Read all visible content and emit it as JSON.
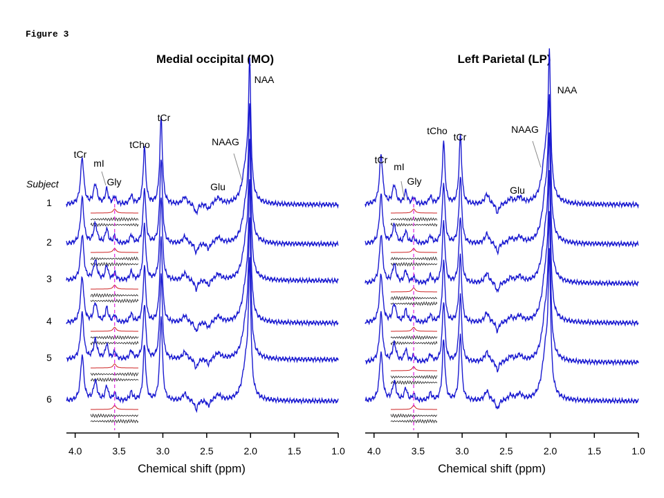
{
  "figure_label": "Figure 3",
  "subject_heading": "Subject",
  "colors": {
    "spectrum": "#1a1ad0",
    "fit": "#cc2222",
    "residual": "#202020",
    "glycine_marker": "#e020e0",
    "axis": "#000000"
  },
  "chart_data": [
    {
      "type": "line",
      "title": "Medial occipital (MO)",
      "xlabel": "Chemical shift (ppm)",
      "ylabel": "",
      "xlim": [
        4.1,
        1.0
      ],
      "x_reversed": true,
      "xticks": [
        4.0,
        3.5,
        3.0,
        2.5,
        2.0,
        1.5,
        1.0
      ],
      "xtick_labels": [
        "4.0",
        "3.5",
        "3.0",
        "2.5",
        "2.0",
        "1.5",
        "1.0"
      ],
      "subjects": [
        "1",
        "2",
        "3",
        "4",
        "5",
        "6"
      ],
      "glycine_marker_ppm": 3.55,
      "peak_labels": [
        {
          "label": "tCr",
          "ppm": 3.92
        },
        {
          "label": "mI",
          "ppm": 3.78
        },
        {
          "label": "Gly",
          "ppm": 3.55
        },
        {
          "label": "tCho",
          "ppm": 3.2
        },
        {
          "label": "tCr",
          "ppm": 3.02
        },
        {
          "label": "NAAG",
          "ppm": 2.05
        },
        {
          "label": "Glu",
          "ppm": 2.35
        },
        {
          "label": "NAA",
          "ppm": 2.01
        }
      ],
      "peaks": [
        {
          "ppm": 3.92,
          "height": 0.38,
          "width": 0.022
        },
        {
          "ppm": 3.77,
          "height": 0.16,
          "width": 0.025
        },
        {
          "ppm": 3.64,
          "height": 0.12,
          "width": 0.02
        },
        {
          "ppm": 3.55,
          "height": 0.06,
          "width": 0.018
        },
        {
          "ppm": 3.36,
          "height": 0.07,
          "width": 0.02
        },
        {
          "ppm": 3.21,
          "height": 0.46,
          "width": 0.018
        },
        {
          "ppm": 3.02,
          "height": 0.7,
          "width": 0.018
        },
        {
          "ppm": 2.75,
          "height": 0.06,
          "width": 0.03
        },
        {
          "ppm": 2.62,
          "height": -0.08,
          "width": 0.02
        },
        {
          "ppm": 2.48,
          "height": -0.05,
          "width": 0.02
        },
        {
          "ppm": 2.37,
          "height": 0.05,
          "width": 0.04
        },
        {
          "ppm": 2.05,
          "height": 0.3,
          "width": 0.05
        },
        {
          "ppm": 2.01,
          "height": 1.0,
          "width": 0.016
        }
      ]
    },
    {
      "type": "line",
      "title": "Left Parietal (LP)",
      "xlabel": "Chemical shift (ppm)",
      "ylabel": "",
      "xlim": [
        4.1,
        1.0
      ],
      "x_reversed": true,
      "xticks": [
        4.0,
        3.5,
        3.0,
        2.5,
        2.0,
        1.5,
        1.0
      ],
      "xtick_labels": [
        "4.0",
        "3.5",
        "3.0",
        "2.5",
        "2.0",
        "1.5",
        "1.0"
      ],
      "subjects": [
        "1",
        "2",
        "3",
        "4",
        "5",
        "6"
      ],
      "glycine_marker_ppm": 3.55,
      "peak_labels": [
        {
          "label": "tCr",
          "ppm": 3.92
        },
        {
          "label": "mI",
          "ppm": 3.78
        },
        {
          "label": "Gly",
          "ppm": 3.55
        },
        {
          "label": "tCho",
          "ppm": 3.2
        },
        {
          "label": "tCr",
          "ppm": 3.02
        },
        {
          "label": "NAAG",
          "ppm": 2.05
        },
        {
          "label": "Glu",
          "ppm": 2.35
        },
        {
          "label": "NAA",
          "ppm": 2.01
        }
      ],
      "peaks": [
        {
          "ppm": 3.92,
          "height": 0.4,
          "width": 0.022
        },
        {
          "ppm": 3.77,
          "height": 0.15,
          "width": 0.025
        },
        {
          "ppm": 3.64,
          "height": 0.1,
          "width": 0.02
        },
        {
          "ppm": 3.55,
          "height": 0.05,
          "width": 0.018
        },
        {
          "ppm": 3.36,
          "height": 0.06,
          "width": 0.02
        },
        {
          "ppm": 3.21,
          "height": 0.5,
          "width": 0.018
        },
        {
          "ppm": 3.02,
          "height": 0.55,
          "width": 0.018
        },
        {
          "ppm": 2.72,
          "height": 0.08,
          "width": 0.03
        },
        {
          "ppm": 2.6,
          "height": -0.08,
          "width": 0.02
        },
        {
          "ppm": 2.45,
          "height": 0.04,
          "width": 0.03
        },
        {
          "ppm": 2.35,
          "height": 0.05,
          "width": 0.04
        },
        {
          "ppm": 2.05,
          "height": 0.4,
          "width": 0.05
        },
        {
          "ppm": 2.01,
          "height": 1.0,
          "width": 0.016
        }
      ]
    }
  ]
}
